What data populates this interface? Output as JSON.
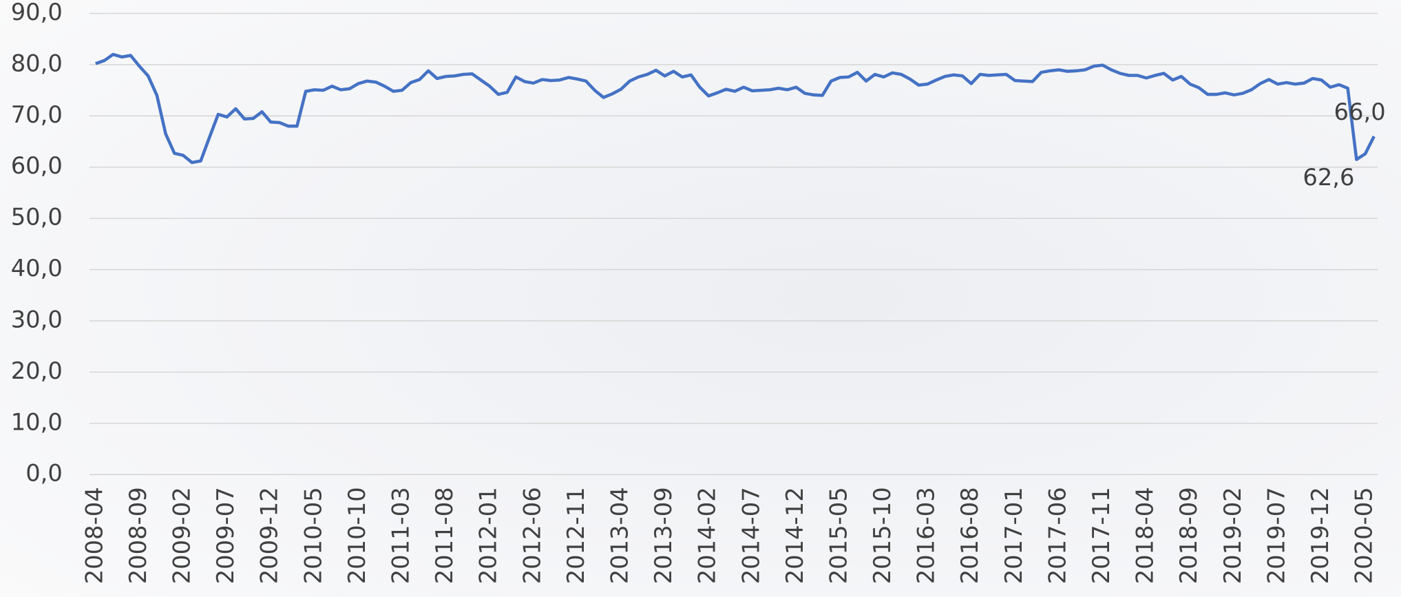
{
  "chart_data": {
    "type": "line",
    "categories": [
      "2008-04",
      null,
      null,
      null,
      null,
      "2008-09",
      null,
      null,
      null,
      null,
      "2009-02",
      null,
      null,
      null,
      null,
      "2009-07",
      null,
      null,
      null,
      null,
      "2009-12",
      null,
      null,
      null,
      null,
      "2010-05",
      null,
      null,
      null,
      null,
      "2010-10",
      null,
      null,
      null,
      null,
      "2011-03",
      null,
      null,
      null,
      null,
      "2011-08",
      null,
      null,
      null,
      null,
      "2012-01",
      null,
      null,
      null,
      null,
      "2012-06",
      null,
      null,
      null,
      null,
      "2012-11",
      null,
      null,
      null,
      null,
      "2013-04",
      null,
      null,
      null,
      null,
      "2013-09",
      null,
      null,
      null,
      null,
      "2014-02",
      null,
      null,
      null,
      null,
      "2014-07",
      null,
      null,
      null,
      null,
      "2014-12",
      null,
      null,
      null,
      null,
      "2015-05",
      null,
      null,
      null,
      null,
      "2015-10",
      null,
      null,
      null,
      null,
      "2016-03",
      null,
      null,
      null,
      null,
      "2016-08",
      null,
      null,
      null,
      null,
      "2017-01",
      null,
      null,
      null,
      null,
      "2017-06",
      null,
      null,
      null,
      null,
      "2017-11",
      null,
      null,
      null,
      null,
      "2018-04",
      null,
      null,
      null,
      null,
      "2018-09",
      null,
      null,
      null,
      null,
      "2019-02",
      null,
      null,
      null,
      null,
      "2019-07",
      null,
      null,
      null,
      null,
      "2019-12",
      null,
      null,
      null,
      null,
      "2020-05",
      null
    ],
    "values": [
      80.2,
      80.8,
      82.0,
      81.5,
      81.8,
      79.7,
      77.8,
      74.0,
      66.5,
      62.7,
      62.3,
      60.9,
      61.2,
      65.8,
      70.3,
      69.8,
      71.4,
      69.4,
      69.5,
      70.8,
      68.8,
      68.7,
      68.0,
      68.0,
      74.8,
      75.1,
      75.0,
      75.8,
      75.1,
      75.3,
      76.3,
      76.8,
      76.6,
      75.8,
      74.8,
      75.0,
      76.5,
      77.1,
      78.8,
      77.3,
      77.7,
      77.8,
      78.1,
      78.2,
      77.0,
      75.8,
      74.2,
      74.6,
      77.6,
      76.7,
      76.4,
      77.1,
      76.9,
      77.0,
      77.5,
      77.2,
      76.8,
      75.0,
      73.6,
      74.3,
      75.2,
      76.8,
      77.6,
      78.1,
      78.9,
      77.8,
      78.7,
      77.6,
      78.0,
      75.6,
      73.9,
      74.5,
      75.2,
      74.8,
      75.6,
      74.9,
      75.0,
      75.1,
      75.4,
      75.1,
      75.6,
      74.4,
      74.1,
      74.0,
      76.8,
      77.5,
      77.6,
      78.5,
      76.8,
      78.1,
      77.6,
      78.4,
      78.1,
      77.2,
      76.0,
      76.2,
      77.0,
      77.7,
      78.0,
      77.8,
      76.3,
      78.1,
      77.9,
      78.0,
      78.1,
      76.9,
      76.8,
      76.7,
      78.5,
      78.8,
      79.0,
      78.7,
      78.8,
      79.0,
      79.7,
      79.9,
      79.0,
      78.3,
      77.9,
      77.9,
      77.4,
      77.9,
      78.3,
      77.0,
      77.7,
      76.2,
      75.5,
      74.2,
      74.2,
      74.5,
      74.1,
      74.4,
      75.1,
      76.3,
      77.1,
      76.2,
      76.5,
      76.2,
      76.4,
      77.3,
      77.0,
      75.6,
      76.1,
      75.4,
      61.5,
      62.6,
      66.0
    ],
    "value_labels": [
      null,
      null,
      null,
      null,
      null,
      null,
      null,
      null,
      null,
      null,
      null,
      null,
      null,
      null,
      null,
      null,
      null,
      null,
      null,
      null,
      null,
      null,
      null,
      null,
      null,
      null,
      null,
      null,
      null,
      null,
      null,
      null,
      null,
      null,
      null,
      null,
      null,
      null,
      null,
      null,
      null,
      null,
      null,
      null,
      null,
      null,
      null,
      null,
      null,
      null,
      null,
      null,
      null,
      null,
      null,
      null,
      null,
      null,
      null,
      null,
      null,
      null,
      null,
      null,
      null,
      null,
      null,
      null,
      null,
      null,
      null,
      null,
      null,
      null,
      null,
      null,
      null,
      null,
      null,
      null,
      null,
      null,
      null,
      null,
      null,
      null,
      null,
      null,
      null,
      null,
      null,
      null,
      null,
      null,
      null,
      null,
      null,
      null,
      null,
      null,
      null,
      null,
      null,
      null,
      null,
      null,
      null,
      null,
      null,
      null,
      null,
      null,
      null,
      null,
      null,
      null,
      null,
      null,
      null,
      null,
      null,
      null,
      null,
      null,
      null,
      null,
      null,
      null,
      null,
      null,
      null,
      null,
      null,
      null,
      null,
      null,
      null,
      null,
      null,
      null,
      null,
      null,
      null,
      null,
      null,
      "62,6",
      "66,0"
    ],
    "color": "#4472c4",
    "ylim": [
      0,
      90
    ],
    "yticks": [
      {
        "value": 0,
        "label": "0,0"
      },
      {
        "value": 10,
        "label": "10,0"
      },
      {
        "value": 20,
        "label": "20,0"
      },
      {
        "value": 30,
        "label": "30,0"
      },
      {
        "value": 40,
        "label": "40,0"
      },
      {
        "value": 50,
        "label": "50,0"
      },
      {
        "value": 60,
        "label": "60,0"
      },
      {
        "value": 70,
        "label": "70,0"
      },
      {
        "value": 80,
        "label": "80,0"
      },
      {
        "value": 90,
        "label": "90,0"
      }
    ],
    "grid": true
  }
}
